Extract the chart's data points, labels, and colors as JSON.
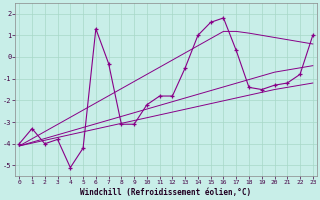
{
  "x_data": [
    0,
    1,
    2,
    3,
    4,
    5,
    6,
    7,
    8,
    9,
    10,
    11,
    12,
    13,
    14,
    15,
    16,
    17,
    18,
    19,
    20,
    21,
    22,
    23
  ],
  "y_main": [
    -4.0,
    -3.3,
    -4.0,
    -3.8,
    -5.1,
    -4.2,
    1.3,
    -0.3,
    -3.1,
    -3.1,
    -2.2,
    -1.8,
    -1.8,
    -0.5,
    1.0,
    1.6,
    1.8,
    0.3,
    -1.4,
    -1.5,
    -1.3,
    -1.2,
    -0.8,
    1.0
  ],
  "y_line1": [
    -4.1,
    -3.77,
    -3.44,
    -3.11,
    -2.78,
    -2.45,
    -2.12,
    -1.79,
    -1.46,
    -1.13,
    -0.8,
    -0.47,
    -0.14,
    0.19,
    0.52,
    0.85,
    1.18,
    1.18,
    1.1,
    1.0,
    0.9,
    0.8,
    0.7,
    0.6
  ],
  "y_line2": [
    -4.1,
    -3.93,
    -3.76,
    -3.59,
    -3.42,
    -3.25,
    -3.08,
    -2.91,
    -2.74,
    -2.57,
    -2.4,
    -2.23,
    -2.06,
    -1.89,
    -1.72,
    -1.55,
    -1.38,
    -1.21,
    -1.04,
    -0.87,
    -0.7,
    -0.6,
    -0.5,
    -0.4
  ],
  "y_line3": [
    -4.1,
    -3.97,
    -3.84,
    -3.71,
    -3.58,
    -3.45,
    -3.32,
    -3.19,
    -3.06,
    -2.93,
    -2.8,
    -2.67,
    -2.54,
    -2.41,
    -2.28,
    -2.15,
    -2.02,
    -1.89,
    -1.76,
    -1.63,
    -1.5,
    -1.4,
    -1.3,
    -1.2
  ],
  "line_color": "#880088",
  "bg_color": "#c8eee8",
  "grid_color": "#a8d8c8",
  "xlabel": "Windchill (Refroidissement éolien,°C)",
  "xlim": [
    0,
    23
  ],
  "ylim": [
    -5.5,
    2.5
  ],
  "yticks": [
    -5,
    -4,
    -3,
    -2,
    -1,
    0,
    1,
    2
  ],
  "xticks": [
    0,
    1,
    2,
    3,
    4,
    5,
    6,
    7,
    8,
    9,
    10,
    11,
    12,
    13,
    14,
    15,
    16,
    17,
    18,
    19,
    20,
    21,
    22,
    23
  ]
}
